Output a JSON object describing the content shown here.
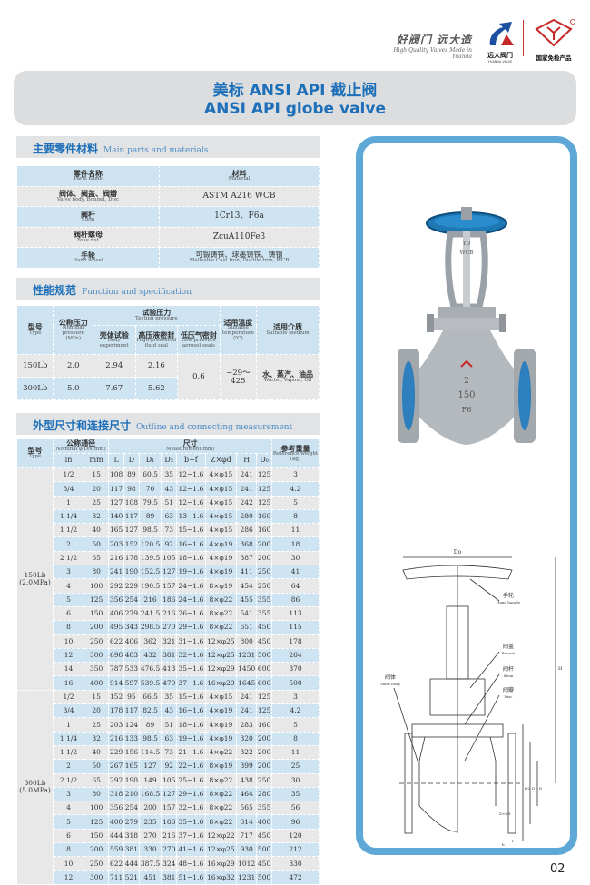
{
  "header": {
    "slogan_cn": "好阀门 远大造",
    "slogan_en": "High Quality Valves Made in Yuanda",
    "logo1_text": "远大阀门",
    "logo1_sub": "YUANDA VALVE",
    "logo2_text": "国家免检产品",
    "logo2_mark": "尧宇",
    "brand_color": "#1c6fb8"
  },
  "title": {
    "cn": "美标 ANSI API 截止阀",
    "en": "ANSI API globe valve"
  },
  "materials": {
    "section_cn": "主要零件材料",
    "section_en": "Main parts and materials",
    "head": [
      {
        "cn": "零件名称",
        "en": "Parts name"
      },
      {
        "cn": "材料",
        "en": "Material"
      }
    ],
    "rows": [
      {
        "part_cn": "阀体、阀盖、阀瓣",
        "part_en": "Valve body, Bonnet, Disc",
        "mat": "ASTM  A216  WCB",
        "mat_en": ""
      },
      {
        "part_cn": "阀杆",
        "part_en": "Stem",
        "mat": "1Cr13、F6a",
        "mat_en": ""
      },
      {
        "part_cn": "阀杆螺母",
        "part_en": "Yoke nut",
        "mat": "ZcuA110Fe3",
        "mat_en": ""
      },
      {
        "part_cn": "手轮",
        "part_en": "Hand wheel",
        "mat": "可锻铸铁、球墨铸铁、铸钢",
        "mat_en": "Malleable Cast Iron, Ductile Iron, WCB"
      }
    ]
  },
  "spec": {
    "section_cn": "性能规范",
    "section_en": "Function and specification",
    "h_type": {
      "cn": "型号",
      "en": "Type"
    },
    "h_pressure": {
      "cn": "公称压力",
      "en": "Nominal pressure (MPa)"
    },
    "h_testing": {
      "cn": "试验压力",
      "en": "Testing pressure"
    },
    "h_body": {
      "cn": "壳体试验",
      "en": "Body experiment"
    },
    "h_fluid": {
      "cn": "高压液密封",
      "en": "High-pressured fluid seal"
    },
    "h_air": {
      "cn": "低压气密封",
      "en": "Low pressure aerosol seals"
    },
    "h_temp": {
      "cn": "适用温度",
      "en": "Suitable temperature (℃)"
    },
    "h_medium": {
      "cn": "适用介质",
      "en": "Suitable medium"
    },
    "rows": [
      {
        "type": "150Lb",
        "pressure": "2.0",
        "body": "2.94",
        "fluid": "2.16"
      },
      {
        "type": "300Lb",
        "pressure": "5.0",
        "body": "7.67",
        "fluid": "5.62"
      }
    ],
    "air": "0.6",
    "temp": "−29～425",
    "medium_cn": "水、蒸汽、油品",
    "medium_en": "Warter, Vapour, Oil"
  },
  "dimensions": {
    "section_cn": "外型尺寸和连接尺寸",
    "section_en": "Outline and connecting measurement",
    "h_type": {
      "cn": "型号",
      "en": "Type"
    },
    "h_dn": {
      "cn": "公称通径",
      "en": "Nominal φ DN(mm)"
    },
    "h_meas": {
      "cn": "尺寸",
      "en": "Measurement(mm)"
    },
    "h_weight": {
      "cn": "参考重量",
      "en": "Reference weight (kg)"
    },
    "cols": [
      "in",
      "mm",
      "L",
      "D",
      "D₁",
      "D₂",
      "b−f",
      "Z×φd",
      "H",
      "D₀"
    ],
    "groups": [
      {
        "type": "150Lb",
        "pressure": "(2.0MPa)",
        "rows": [
          [
            "1/2",
            "15",
            "108",
            "89",
            "60.5",
            "35",
            "12−1.6",
            "4×φ15",
            "241",
            "125",
            "3"
          ],
          [
            "3/4",
            "20",
            "117",
            "98",
            "70",
            "43",
            "12−1.6",
            "4×φ15",
            "241",
            "125",
            "4.2"
          ],
          [
            "1",
            "25",
            "127",
            "108",
            "79.5",
            "51",
            "12−1.6",
            "4×φ15",
            "242",
            "125",
            "5"
          ],
          [
            "1 1/4",
            "32",
            "140",
            "117",
            "89",
            "63",
            "13−1.6",
            "4×φ15",
            "280",
            "160",
            "8"
          ],
          [
            "1 1/2",
            "40",
            "165",
            "127",
            "98.5",
            "73",
            "15−1.6",
            "4×φ15",
            "286",
            "160",
            "11"
          ],
          [
            "2",
            "50",
            "203",
            "152",
            "120.5",
            "92",
            "16−1.6",
            "4×φ19",
            "368",
            "200",
            "18"
          ],
          [
            "2 1/2",
            "65",
            "216",
            "178",
            "139.5",
            "105",
            "18−1.6",
            "4×φ19",
            "387",
            "200",
            "30"
          ],
          [
            "3",
            "80",
            "241",
            "190",
            "152.5",
            "127",
            "19−1.6",
            "4×φ19",
            "411",
            "250",
            "41"
          ],
          [
            "4",
            "100",
            "292",
            "229",
            "190.5",
            "157",
            "24−1.6",
            "8×φ19",
            "454",
            "250",
            "64"
          ],
          [
            "5",
            "125",
            "356",
            "254",
            "216",
            "186",
            "24−1.6",
            "8×φ22",
            "455",
            "355",
            "86"
          ],
          [
            "6",
            "150",
            "406",
            "279",
            "241.5",
            "216",
            "26−1.6",
            "8×φ22",
            "541",
            "355",
            "113"
          ],
          [
            "8",
            "200",
            "495",
            "343",
            "298.5",
            "270",
            "29−1.6",
            "8×φ22",
            "651",
            "450",
            "115"
          ],
          [
            "10",
            "250",
            "622",
            "406",
            "362",
            "321",
            "31−1.6",
            "12×φ25",
            "800",
            "450",
            "178"
          ],
          [
            "12",
            "300",
            "698",
            "483",
            "432",
            "381",
            "32−1.6",
            "12×φ25",
            "1231",
            "500",
            "264"
          ],
          [
            "14",
            "350",
            "787",
            "533",
            "476.5",
            "413",
            "35−1.6",
            "12×φ29",
            "1450",
            "600",
            "370"
          ],
          [
            "16",
            "400",
            "914",
            "597",
            "539.5",
            "470",
            "37−1.6",
            "16×φ29",
            "1645",
            "600",
            "500"
          ]
        ]
      },
      {
        "type": "300Lb",
        "pressure": "(5.0MPa)",
        "rows": [
          [
            "1/2",
            "15",
            "152",
            "95",
            "66.5",
            "35",
            "15−1.6",
            "4×φ15",
            "241",
            "125",
            "3"
          ],
          [
            "3/4",
            "20",
            "178",
            "117",
            "82.5",
            "43",
            "16−1.6",
            "4×φ19",
            "241",
            "125",
            "4.2"
          ],
          [
            "1",
            "25",
            "203",
            "124",
            "89",
            "51",
            "18−1.6",
            "4×φ19",
            "283",
            "160",
            "5"
          ],
          [
            "1 1/4",
            "32",
            "216",
            "133",
            "98.5",
            "63",
            "19−1.6",
            "4×φ19",
            "320",
            "200",
            "8"
          ],
          [
            "1 1/2",
            "40",
            "229",
            "156",
            "114.5",
            "73",
            "21−1.6",
            "4×φ22",
            "322",
            "200",
            "11"
          ],
          [
            "2",
            "50",
            "267",
            "165",
            "127",
            "92",
            "22−1.6",
            "8×φ19",
            "399",
            "200",
            "25"
          ],
          [
            "2 1/2",
            "65",
            "292",
            "190",
            "149",
            "105",
            "25−1.6",
            "8×φ22",
            "438",
            "250",
            "30"
          ],
          [
            "3",
            "80",
            "318",
            "210",
            "168.5",
            "127",
            "29−1.6",
            "8×φ22",
            "464",
            "280",
            "35"
          ],
          [
            "4",
            "100",
            "356",
            "254",
            "200",
            "157",
            "32−1.6",
            "8×φ22",
            "565",
            "355",
            "56"
          ],
          [
            "5",
            "125",
            "400",
            "279",
            "235",
            "186",
            "35−1.6",
            "8×φ22",
            "614",
            "400",
            "96"
          ],
          [
            "6",
            "150",
            "444",
            "318",
            "270",
            "216",
            "37−1.6",
            "12×φ22",
            "717",
            "450",
            "120"
          ],
          [
            "8",
            "200",
            "559",
            "381",
            "330",
            "270",
            "41−1.6",
            "12×φ25",
            "930",
            "500",
            "212"
          ],
          [
            "10",
            "250",
            "622",
            "444",
            "387.5",
            "324",
            "48−1.6",
            "16×φ29",
            "1012",
            "450",
            "330"
          ],
          [
            "12",
            "300",
            "711",
            "521",
            "451",
            "381",
            "51−1.6",
            "16×φ32",
            "1231",
            "500",
            "472"
          ]
        ]
      }
    ]
  },
  "drawing": {
    "photo_marks": [
      "YD",
      "WCB",
      "150",
      "2",
      "F6"
    ],
    "labels": [
      {
        "cn": "手轮",
        "en": "Hand handle"
      },
      {
        "cn": "阀盖",
        "en": "Bonnet"
      },
      {
        "cn": "阀杆",
        "en": "Stem"
      },
      {
        "cn": "阀瓣",
        "en": "Disc"
      },
      {
        "cn": "阀体",
        "en": "Valve body"
      }
    ],
    "dims": {
      "d0": "Do",
      "h": "H",
      "l": "L",
      "zd": "Z×Φd",
      "b": "b",
      "f": "f",
      "d": "D",
      "d1": "D1",
      "d2": "D2",
      "dn": "DN"
    }
  },
  "page_number": "02"
}
